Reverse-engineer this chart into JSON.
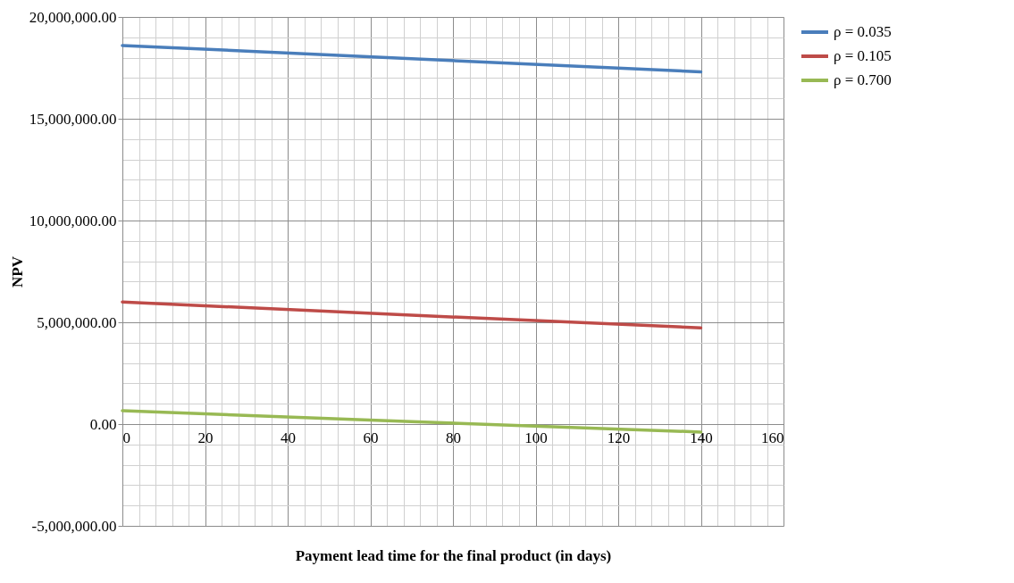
{
  "chart_data": {
    "type": "line",
    "xlabel": "Payment lead time for the final product  (in days)",
    "ylabel": "NPV",
    "x": [
      0,
      70,
      140
    ],
    "series": [
      {
        "name": "ρ = 0.035",
        "color": "#4a7ebb",
        "values": [
          18600000,
          17950000,
          17300000
        ]
      },
      {
        "name": "ρ = 0.105",
        "color": "#be4b48",
        "values": [
          6000000,
          5350000,
          4730000
        ]
      },
      {
        "name": "ρ = 0.700",
        "color": "#98b954",
        "values": [
          660000,
          120000,
          -390000
        ]
      }
    ],
    "xlim": [
      0,
      160
    ],
    "xticks": [
      0,
      20,
      40,
      60,
      80,
      100,
      120,
      140,
      160
    ],
    "ylim": [
      -5000000,
      20000000
    ],
    "yticks": [
      {
        "value": -5000000,
        "label": "-5,000,000.00"
      },
      {
        "value": 0,
        "label": "0.00"
      },
      {
        "value": 5000000,
        "label": "5,000,000.00"
      },
      {
        "value": 10000000,
        "label": "10,000,000.00"
      },
      {
        "value": 15000000,
        "label": "15,000,000.00"
      },
      {
        "value": 20000000,
        "label": "20,000,000.00"
      }
    ],
    "grid": true,
    "legend": "right",
    "marker": "none",
    "line_style": "solid"
  }
}
